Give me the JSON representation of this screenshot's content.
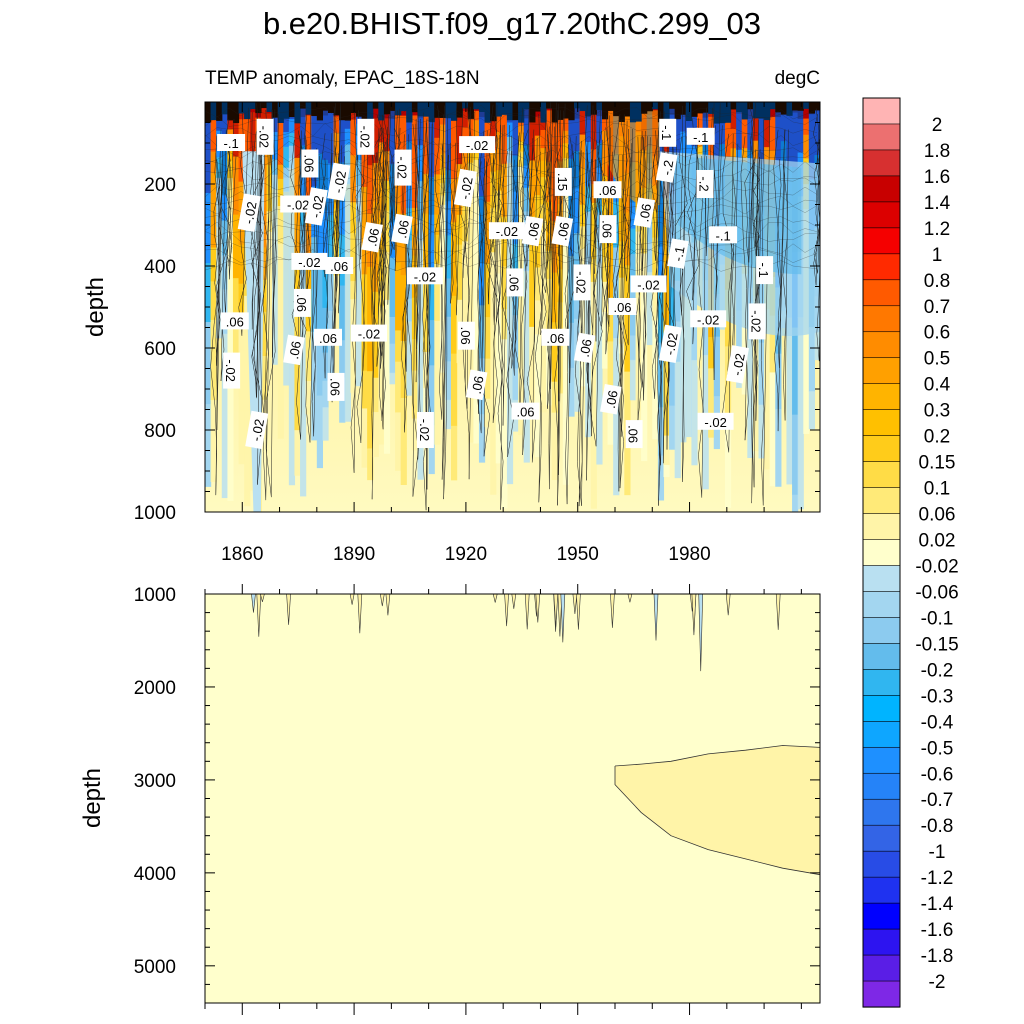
{
  "title": "b.e20.BHIST.f09_g17.20thC.299_03",
  "subtitle_left": "TEMP anomaly, EPAC_18S-18N",
  "subtitle_right": "degC",
  "chart_data": [
    {
      "type": "heatmap",
      "name": "upper-ocean",
      "xlabel": "",
      "ylabel": "depth",
      "xlim": [
        1850,
        2015
      ],
      "ylim": [
        0,
        1000
      ],
      "y_inverted": true,
      "xticks": [
        1860,
        1890,
        1920,
        1950,
        1980
      ],
      "yticks": [
        200,
        400,
        600,
        800,
        1000
      ],
      "contour_labels": [
        {
          "text": "-.1",
          "x": 1857,
          "y": 100
        },
        {
          "text": "-.02",
          "x": 1866,
          "y": 85
        },
        {
          "text": "-.02",
          "x": 1862,
          "y": 270
        },
        {
          "text": ".06",
          "x": 1858,
          "y": 535
        },
        {
          "text": "-.02",
          "x": 1857,
          "y": 655
        },
        {
          "text": "-.02",
          "x": 1864,
          "y": 800
        },
        {
          "text": "-.02",
          "x": 1875,
          "y": 250
        },
        {
          "text": ".06",
          "x": 1878,
          "y": 150
        },
        {
          "text": "-.02",
          "x": 1880,
          "y": 255
        },
        {
          "text": "-.02",
          "x": 1878,
          "y": 390
        },
        {
          "text": ".06",
          "x": 1876,
          "y": 490
        },
        {
          "text": ".06",
          "x": 1874,
          "y": 605
        },
        {
          "text": ".06",
          "x": 1883,
          "y": 575
        },
        {
          "text": ".06",
          "x": 1885,
          "y": 695
        },
        {
          "text": "-.02",
          "x": 1886,
          "y": 195
        },
        {
          "text": ".06",
          "x": 1886,
          "y": 400
        },
        {
          "text": "-.02",
          "x": 1893,
          "y": 85
        },
        {
          "text": ".06",
          "x": 1895,
          "y": 330
        },
        {
          "text": "-.02",
          "x": 1894,
          "y": 565
        },
        {
          "text": "-.02",
          "x": 1903,
          "y": 160
        },
        {
          "text": ".06",
          "x": 1903,
          "y": 310
        },
        {
          "text": "-.02",
          "x": 1909,
          "y": 425
        },
        {
          "text": "-.02",
          "x": 1909,
          "y": 800
        },
        {
          "text": "-.02",
          "x": 1920,
          "y": 210
        },
        {
          "text": "-.02",
          "x": 1923,
          "y": 105
        },
        {
          "text": ".06",
          "x": 1920,
          "y": 570
        },
        {
          "text": ".06",
          "x": 1923,
          "y": 690
        },
        {
          "text": "-.02",
          "x": 1931,
          "y": 315
        },
        {
          "text": ".06",
          "x": 1933,
          "y": 440
        },
        {
          "text": ".06",
          "x": 1938,
          "y": 315
        },
        {
          "text": ".06",
          "x": 1936,
          "y": 755
        },
        {
          "text": ".15",
          "x": 1946,
          "y": 195
        },
        {
          "text": ".06",
          "x": 1946,
          "y": 315
        },
        {
          "text": ".06",
          "x": 1944,
          "y": 575
        },
        {
          "text": "-.02",
          "x": 1951,
          "y": 440
        },
        {
          "text": ".06",
          "x": 1952,
          "y": 600
        },
        {
          "text": ".06",
          "x": 1958,
          "y": 215
        },
        {
          "text": ".06",
          "x": 1958,
          "y": 310
        },
        {
          "text": ".06",
          "x": 1959,
          "y": 725
        },
        {
          "text": ".06",
          "x": 1962,
          "y": 500
        },
        {
          "text": ".06",
          "x": 1965,
          "y": 810
        },
        {
          "text": ".06",
          "x": 1968,
          "y": 270
        },
        {
          "text": "-.02",
          "x": 1969,
          "y": 445
        },
        {
          "text": "-.1",
          "x": 1974,
          "y": 75
        },
        {
          "text": "-.2",
          "x": 1974,
          "y": 160
        },
        {
          "text": "-.1",
          "x": 1983,
          "y": 85
        },
        {
          "text": "-.2",
          "x": 1984,
          "y": 200
        },
        {
          "text": "-.1",
          "x": 1977,
          "y": 370
        },
        {
          "text": "-.1",
          "x": 1989,
          "y": 325
        },
        {
          "text": "-.1",
          "x": 2000,
          "y": 410
        },
        {
          "text": "-.02",
          "x": 1975,
          "y": 590
        },
        {
          "text": "-.02",
          "x": 1985,
          "y": 530
        },
        {
          "text": "-.02",
          "x": 1998,
          "y": 535
        },
        {
          "text": "-.02",
          "x": 1993,
          "y": 640
        },
        {
          "text": "-.02",
          "x": 1987,
          "y": 780
        }
      ]
    },
    {
      "type": "heatmap",
      "name": "deep-ocean",
      "xlabel": "",
      "ylabel": "depth",
      "xlim": [
        1850,
        2015
      ],
      "ylim": [
        1000,
        5400
      ],
      "y_inverted": true,
      "yticks": [
        1000,
        2000,
        3000,
        4000,
        5000
      ],
      "background_range": "-0.02 to 0.02",
      "warm_region_range": "0.02 to 0.06",
      "warm_region_upper": [
        [
          1960,
          2850
        ],
        [
          1967,
          2830
        ],
        [
          1975,
          2800
        ],
        [
          1985,
          2720
        ],
        [
          1995,
          2680
        ],
        [
          2005,
          2630
        ],
        [
          2015,
          2650
        ]
      ],
      "warm_region_lower": [
        [
          1960,
          3050
        ],
        [
          1967,
          3350
        ],
        [
          1975,
          3600
        ],
        [
          1985,
          3750
        ],
        [
          1995,
          3850
        ],
        [
          2005,
          3950
        ],
        [
          2015,
          4020
        ]
      ]
    }
  ],
  "colorbar": {
    "levels": [
      "2",
      "1.8",
      "1.6",
      "1.4",
      "1.2",
      "1",
      "0.8",
      "0.7",
      "0.6",
      "0.5",
      "0.4",
      "0.3",
      "0.2",
      "0.15",
      "0.1",
      "0.06",
      "0.02",
      "-0.02",
      "-0.06",
      "-0.1",
      "-0.15",
      "-0.2",
      "-0.3",
      "-0.4",
      "-0.5",
      "-0.6",
      "-0.7",
      "-0.8",
      "-1",
      "-1.2",
      "-1.4",
      "-1.6",
      "-1.8",
      "-2"
    ],
    "colors": [
      "#ffb4b4",
      "#ec7070",
      "#d73030",
      "#c80000",
      "#dc0000",
      "#f50000",
      "#ff2a00",
      "#ff5a00",
      "#ff7800",
      "#ff8c00",
      "#ffa000",
      "#ffb400",
      "#ffc000",
      "#ffcc1a",
      "#ffdc46",
      "#ffea78",
      "#fff4a8",
      "#ffffcc",
      "#b9e0f1",
      "#a3d6f0",
      "#8ccbef",
      "#63bcec",
      "#30b6f0",
      "#00b4ff",
      "#0ea6ff",
      "#1e90ff",
      "#2583f8",
      "#2e76ee",
      "#3364e6",
      "#284ce6",
      "#1f32f0",
      "#0000ff",
      "#2d14f0",
      "#5a1ee6",
      "#7e28e6"
    ]
  }
}
